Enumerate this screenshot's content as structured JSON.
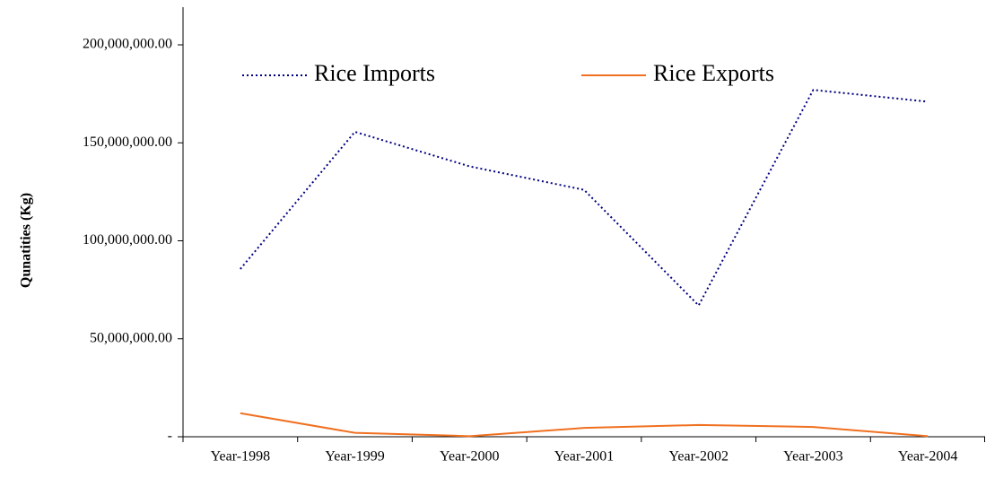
{
  "chart_data": {
    "type": "line",
    "y_label": "Qunatities (Kg)",
    "categories": [
      "Year-1998",
      "Year-1999",
      "Year-2000",
      "Year-2001",
      "Year-2002",
      "Year-2003",
      "Year-2004"
    ],
    "series": [
      {
        "name": "Rice Imports",
        "color": "#000080",
        "style": "dotted",
        "values": [
          85600000,
          155600000,
          138000000,
          126000000,
          67000000,
          177000000,
          171000000
        ]
      },
      {
        "name": "Rice Exports",
        "color": "#f07020",
        "style": "solid",
        "values": [
          12000000,
          2000000,
          300000,
          4500000,
          6000000,
          5000000,
          300000
        ]
      }
    ],
    "ylim": [
      0,
      200000000
    ],
    "yticks": [
      {
        "value": 0,
        "label": "-"
      },
      {
        "value": 50000000,
        "label": "50,000,000.00"
      },
      {
        "value": 100000000,
        "label": "100,000,000.00"
      },
      {
        "value": 150000000,
        "label": "150,000,000.00"
      },
      {
        "value": 200000000,
        "label": "200,000,000.00"
      }
    ],
    "grid": false,
    "legend": "top"
  }
}
